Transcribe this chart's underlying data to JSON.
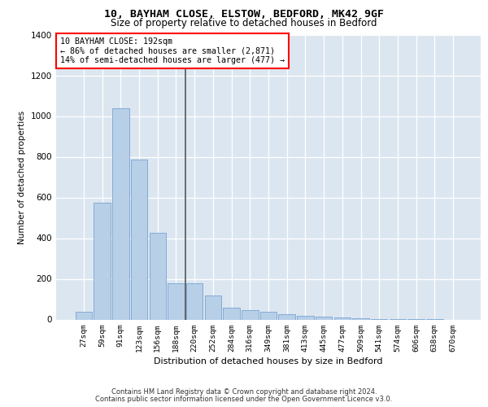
{
  "title1": "10, BAYHAM CLOSE, ELSTOW, BEDFORD, MK42 9GF",
  "title2": "Size of property relative to detached houses in Bedford",
  "xlabel": "Distribution of detached houses by size in Bedford",
  "ylabel": "Number of detached properties",
  "categories": [
    "27sqm",
    "59sqm",
    "91sqm",
    "123sqm",
    "156sqm",
    "188sqm",
    "220sqm",
    "252sqm",
    "284sqm",
    "316sqm",
    "349sqm",
    "381sqm",
    "413sqm",
    "445sqm",
    "477sqm",
    "509sqm",
    "541sqm",
    "574sqm",
    "606sqm",
    "638sqm",
    "670sqm"
  ],
  "values": [
    40,
    575,
    1040,
    785,
    425,
    180,
    180,
    120,
    60,
    45,
    40,
    25,
    20,
    15,
    10,
    5,
    3,
    2,
    1,
    1,
    0
  ],
  "bar_color": "#b8cfe8",
  "bar_edge_color": "#6699cc",
  "vline_position": 5.5,
  "annotation_line1": "10 BAYHAM CLOSE: 192sqm",
  "annotation_line2": "← 86% of detached houses are smaller (2,871)",
  "annotation_line3": "14% of semi-detached houses are larger (477) →",
  "ylim_max": 1400,
  "yticks": [
    0,
    200,
    400,
    600,
    800,
    1000,
    1200,
    1400
  ],
  "footer1": "Contains HM Land Registry data © Crown copyright and database right 2024.",
  "footer2": "Contains public sector information licensed under the Open Government Licence v3.0.",
  "bg_color": "#dce6f0"
}
